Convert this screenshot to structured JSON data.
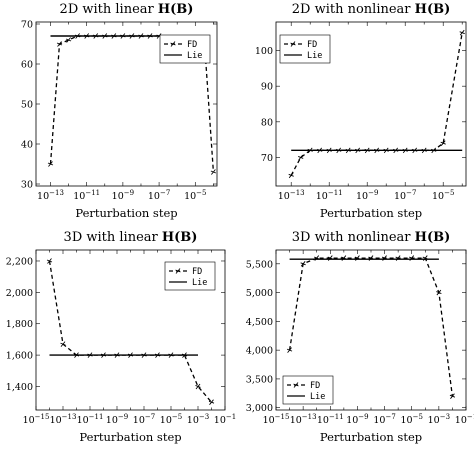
{
  "chart_data": [
    {
      "type": "line",
      "title": "2D with linear H(B)",
      "title_plain": "2D with linear ",
      "title_math": "H(B)",
      "xlabel": "Perturbation step",
      "ylabel": "",
      "xscale": "log",
      "xlim_exp": [
        -13.8,
        -3.8
      ],
      "ylim": [
        29.5,
        70.5
      ],
      "xticks_exp": [
        -13,
        -11,
        -9,
        -7,
        -5
      ],
      "yticks": [
        30,
        40,
        50,
        60,
        70
      ],
      "ytick_labels": [
        "30",
        "40",
        "50",
        "60",
        "70"
      ],
      "legend": "top-right",
      "series": [
        {
          "name": "FD",
          "style": "dashed",
          "marker": "star",
          "x_exp": [
            -13,
            -12.5,
            -12,
            -11.5,
            -11,
            -10.5,
            -10,
            -9.5,
            -9,
            -8.5,
            -8,
            -7.5,
            -7,
            -4.5,
            -4
          ],
          "y": [
            35,
            65,
            66,
            67,
            67,
            67,
            67,
            67,
            67,
            67,
            67,
            67,
            67,
            66,
            33
          ]
        },
        {
          "name": "Lie",
          "style": "solid",
          "x_exp": [
            -13,
            -7
          ],
          "y": [
            67,
            67
          ]
        }
      ]
    },
    {
      "type": "line",
      "title": "2D with nonlinear H(B)",
      "title_plain": "2D with nonlinear ",
      "title_math": "H(B)",
      "xlabel": "Perturbation step",
      "ylabel": "",
      "xscale": "log",
      "xlim_exp": [
        -13.8,
        -3.8
      ],
      "ylim": [
        62,
        108
      ],
      "xticks_exp": [
        -13,
        -11,
        -9,
        -7,
        -5
      ],
      "yticks": [
        70,
        80,
        90,
        100
      ],
      "ytick_labels": [
        "70",
        "80",
        "90",
        "100"
      ],
      "legend": "top-left",
      "series": [
        {
          "name": "FD",
          "style": "dashed",
          "marker": "star",
          "x_exp": [
            -13,
            -12.5,
            -12,
            -11.5,
            -11,
            -10.5,
            -10,
            -9.5,
            -9,
            -8.5,
            -8,
            -7.5,
            -7,
            -6.5,
            -6,
            -5.5,
            -5,
            -4
          ],
          "y": [
            65,
            70,
            72,
            72,
            72,
            72,
            72,
            72,
            72,
            72,
            72,
            72,
            72,
            72,
            72,
            72,
            74,
            105
          ]
        },
        {
          "name": "Lie",
          "style": "solid",
          "x_exp": [
            -13,
            -4
          ],
          "y": [
            72,
            72
          ]
        }
      ]
    },
    {
      "type": "line",
      "title": "3D with linear H(B)",
      "title_plain": "3D with linear ",
      "title_math": "H(B)",
      "xlabel": "Perturbation step",
      "ylabel": "",
      "xscale": "log",
      "xlim_exp": [
        -15,
        -1
      ],
      "ylim": [
        1250,
        2270
      ],
      "xticks_exp": [
        -15,
        -13,
        -11,
        -9,
        -7,
        -5,
        -3,
        -1
      ],
      "yticks": [
        1400,
        1600,
        1800,
        2000,
        2200
      ],
      "ytick_labels": [
        "1,400",
        "1,600",
        "1,800",
        "2,000",
        "2,200"
      ],
      "legend": "top-right",
      "series": [
        {
          "name": "FD",
          "style": "dashed",
          "marker": "star",
          "x_exp": [
            -14,
            -13,
            -12,
            -11,
            -10,
            -9,
            -8,
            -7,
            -6,
            -5,
            -4,
            -3,
            -2
          ],
          "y": [
            2200,
            1670,
            1600,
            1600,
            1600,
            1600,
            1600,
            1600,
            1600,
            1600,
            1600,
            1400,
            1300
          ]
        },
        {
          "name": "Lie",
          "style": "solid",
          "x_exp": [
            -14,
            -3
          ],
          "y": [
            1600,
            1600
          ]
        }
      ]
    },
    {
      "type": "line",
      "title": "3D with nonlinear H(B)",
      "title_plain": "3D with nonlinear ",
      "title_math": "H(B)",
      "xlabel": "Perturbation step",
      "ylabel": "",
      "xscale": "log",
      "xlim_exp": [
        -15,
        -1
      ],
      "ylim": [
        2960,
        5740
      ],
      "xticks_exp": [
        -15,
        -13,
        -11,
        -9,
        -7,
        -5,
        -3,
        -1
      ],
      "yticks": [
        3000,
        3500,
        4000,
        4500,
        5000,
        5500
      ],
      "ytick_labels": [
        "3,000",
        "3,500",
        "4,000",
        "4,500",
        "5,000",
        "5,500"
      ],
      "legend": "bottom-left",
      "series": [
        {
          "name": "FD",
          "style": "dashed",
          "marker": "star",
          "x_exp": [
            -14,
            -13,
            -12,
            -11,
            -10,
            -9,
            -8,
            -7,
            -6,
            -5,
            -4,
            -3,
            -2
          ],
          "y": [
            4000,
            5500,
            5600,
            5600,
            5600,
            5600,
            5600,
            5600,
            5600,
            5600,
            5600,
            5000,
            3200
          ]
        },
        {
          "name": "Lie",
          "style": "solid",
          "x_exp": [
            -14,
            -3
          ],
          "y": [
            5580,
            5580
          ]
        }
      ]
    }
  ]
}
